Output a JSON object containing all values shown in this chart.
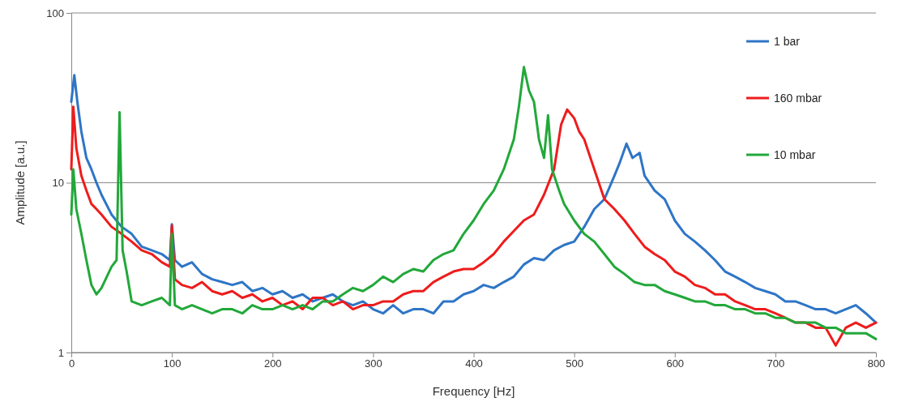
{
  "chart_data": {
    "type": "line",
    "xlabel": "Frequency [Hz]",
    "ylabel": "Amplitude [a.u.]",
    "log": "y",
    "xlim": [
      0,
      800
    ],
    "xticks": [
      0,
      100,
      200,
      300,
      400,
      500,
      600,
      700,
      800
    ],
    "ylim": [
      1,
      100
    ],
    "yticks": [
      1,
      10,
      100
    ],
    "grid": "y",
    "legend": "top right",
    "line_style": "solid",
    "marker": "none",
    "series": [
      {
        "name": "1 bar",
        "color": "#2e75c6",
        "x": [
          0,
          3,
          6,
          10,
          15,
          20,
          25,
          30,
          40,
          50,
          60,
          70,
          80,
          90,
          98,
          100,
          103,
          110,
          120,
          130,
          140,
          150,
          160,
          170,
          180,
          190,
          200,
          210,
          220,
          230,
          240,
          250,
          260,
          270,
          280,
          290,
          300,
          310,
          320,
          330,
          340,
          350,
          360,
          370,
          380,
          390,
          400,
          410,
          420,
          430,
          440,
          450,
          460,
          470,
          480,
          490,
          500,
          510,
          520,
          530,
          540,
          545,
          552,
          558,
          565,
          570,
          580,
          590,
          600,
          610,
          620,
          630,
          640,
          650,
          660,
          670,
          680,
          690,
          700,
          710,
          720,
          730,
          740,
          750,
          760,
          770,
          780,
          790,
          800
        ],
        "values": [
          30,
          43,
          30,
          20,
          14,
          12,
          10,
          8.5,
          6.5,
          5.5,
          5,
          4.2,
          4,
          3.8,
          3.5,
          5.7,
          3.5,
          3.2,
          3.4,
          2.9,
          2.7,
          2.6,
          2.5,
          2.6,
          2.3,
          2.4,
          2.2,
          2.3,
          2.1,
          2.2,
          2,
          2.1,
          2.2,
          2,
          1.9,
          2,
          1.8,
          1.7,
          1.9,
          1.7,
          1.8,
          1.8,
          1.7,
          2,
          2,
          2.2,
          2.3,
          2.5,
          2.4,
          2.6,
          2.8,
          3.3,
          3.6,
          3.5,
          4,
          4.3,
          4.5,
          5.5,
          7,
          8,
          11,
          13,
          17,
          14,
          15,
          11,
          9,
          8,
          6,
          5,
          4.5,
          4,
          3.5,
          3,
          2.8,
          2.6,
          2.4,
          2.3,
          2.2,
          2,
          2,
          1.9,
          1.8,
          1.8,
          1.7,
          1.8,
          1.9,
          1.7,
          1.5
        ]
      },
      {
        "name": "160 mbar",
        "color": "#ee1c1c",
        "x": [
          0,
          2,
          5,
          10,
          15,
          20,
          25,
          30,
          40,
          50,
          60,
          70,
          80,
          90,
          98,
          100,
          103,
          110,
          120,
          130,
          140,
          150,
          160,
          170,
          180,
          190,
          200,
          210,
          220,
          230,
          240,
          250,
          260,
          270,
          280,
          290,
          300,
          310,
          320,
          330,
          340,
          350,
          360,
          370,
          380,
          390,
          400,
          410,
          420,
          430,
          440,
          450,
          460,
          470,
          480,
          487,
          493,
          500,
          505,
          510,
          520,
          530,
          540,
          550,
          560,
          570,
          580,
          590,
          600,
          610,
          620,
          630,
          640,
          650,
          660,
          670,
          680,
          690,
          700,
          710,
          720,
          730,
          740,
          750,
          760,
          770,
          780,
          790,
          800
        ],
        "values": [
          12,
          28,
          16,
          11,
          9,
          7.5,
          7,
          6.5,
          5.5,
          5,
          4.5,
          4,
          3.8,
          3.4,
          3.2,
          5.6,
          2.7,
          2.5,
          2.4,
          2.6,
          2.3,
          2.2,
          2.3,
          2.1,
          2.2,
          2,
          2.1,
          1.9,
          2,
          1.8,
          2.1,
          2.1,
          1.9,
          2,
          1.8,
          1.9,
          1.9,
          2,
          2,
          2.2,
          2.3,
          2.3,
          2.6,
          2.8,
          3,
          3.1,
          3.1,
          3.4,
          3.8,
          4.5,
          5.2,
          6,
          6.5,
          8.5,
          12,
          22,
          27,
          24,
          20,
          18,
          12,
          8,
          7,
          6,
          5,
          4.2,
          3.8,
          3.5,
          3,
          2.8,
          2.5,
          2.4,
          2.2,
          2.2,
          2,
          1.9,
          1.8,
          1.8,
          1.7,
          1.6,
          1.5,
          1.5,
          1.4,
          1.4,
          1.1,
          1.4,
          1.5,
          1.4,
          1.5
        ]
      },
      {
        "name": "10 mbar",
        "color": "#22a83a",
        "x": [
          0,
          2,
          5,
          10,
          15,
          20,
          25,
          30,
          40,
          45,
          48,
          51,
          55,
          60,
          70,
          80,
          90,
          98,
          100,
          103,
          110,
          120,
          130,
          140,
          150,
          160,
          170,
          180,
          190,
          200,
          210,
          220,
          230,
          240,
          250,
          260,
          270,
          280,
          290,
          300,
          310,
          320,
          330,
          340,
          350,
          360,
          370,
          380,
          390,
          400,
          410,
          420,
          430,
          440,
          445,
          450,
          455,
          460,
          465,
          470,
          474,
          478,
          485,
          490,
          500,
          510,
          520,
          530,
          540,
          550,
          560,
          570,
          580,
          590,
          600,
          610,
          620,
          630,
          640,
          650,
          660,
          670,
          680,
          690,
          700,
          710,
          720,
          730,
          740,
          750,
          760,
          770,
          780,
          790,
          800
        ],
        "values": [
          6.5,
          12,
          7,
          5,
          3.5,
          2.5,
          2.2,
          2.4,
          3.2,
          3.5,
          26,
          4,
          3,
          2,
          1.9,
          2,
          2.1,
          1.9,
          5,
          1.9,
          1.8,
          1.9,
          1.8,
          1.7,
          1.8,
          1.8,
          1.7,
          1.9,
          1.8,
          1.8,
          1.9,
          1.8,
          1.9,
          1.8,
          2,
          2,
          2.2,
          2.4,
          2.3,
          2.5,
          2.8,
          2.6,
          2.9,
          3.1,
          3,
          3.5,
          3.8,
          4,
          5,
          6,
          7.5,
          9,
          12,
          18,
          28,
          48,
          35,
          30,
          18,
          14,
          25,
          12,
          9,
          7.5,
          6,
          5,
          4.5,
          3.8,
          3.2,
          2.9,
          2.6,
          2.5,
          2.5,
          2.3,
          2.2,
          2.1,
          2,
          2,
          1.9,
          1.9,
          1.8,
          1.8,
          1.7,
          1.7,
          1.6,
          1.6,
          1.5,
          1.5,
          1.5,
          1.4,
          1.4,
          1.3,
          1.3,
          1.3,
          1.2
        ]
      }
    ]
  }
}
